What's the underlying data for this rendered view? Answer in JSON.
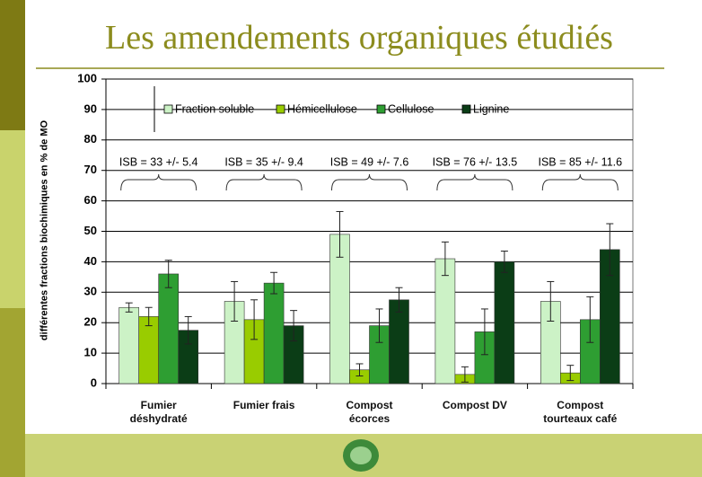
{
  "chart_data": {
    "type": "bar",
    "title": "Les amendements organiques étudiés",
    "y_label": "différentes fractions biochimiques en % de MO",
    "categories": [
      "Fumier déshydraté",
      "Fumier frais",
      "Compost écorces",
      "Compost DV",
      "Compost tourteaux café"
    ],
    "series": [
      {
        "name": "Fraction soluble",
        "color": "#ccf2c6",
        "values": [
          25,
          27,
          49,
          41,
          27
        ],
        "errors": [
          1.5,
          6.5,
          7.5,
          5.5,
          6.5
        ]
      },
      {
        "name": "Hémicellulose",
        "color": "#99cc00",
        "values": [
          22,
          21,
          4.5,
          3,
          3.5
        ],
        "errors": [
          3,
          6.5,
          2,
          2.5,
          2.5
        ]
      },
      {
        "name": "Cellulose",
        "color": "#2e9e32",
        "values": [
          36,
          33,
          19,
          17,
          21
        ],
        "errors": [
          4.5,
          3.5,
          5.5,
          7.5,
          7.5
        ]
      },
      {
        "name": "Lignine",
        "color": "#0b3d16",
        "values": [
          17.5,
          19,
          27.5,
          40,
          44
        ],
        "errors": [
          4.5,
          5,
          4,
          3.5,
          8.5
        ]
      }
    ],
    "annotations": [
      "ISB = 33 +/- 5.4",
      "ISB = 35 +/- 9.4",
      "ISB = 49 +/- 7.6",
      "ISB = 76 +/- 13.5",
      "ISB = 85 +/- 11.6"
    ],
    "ylim": [
      0,
      100
    ],
    "yticks": [
      0,
      10,
      20,
      30,
      40,
      50,
      60,
      70,
      80,
      90,
      100
    ],
    "grid": true
  }
}
